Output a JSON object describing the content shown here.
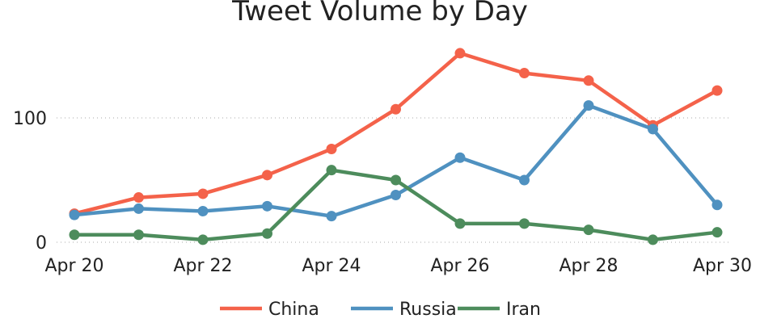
{
  "chart_data": {
    "type": "line",
    "title": "Tweet Volume by Day",
    "x": [
      "Apr 20",
      "Apr 21",
      "Apr 22",
      "Apr 23",
      "Apr 24",
      "Apr 25",
      "Apr 26",
      "Apr 27",
      "Apr 28",
      "Apr 29",
      "Apr 30"
    ],
    "x_tick_labels": [
      "Apr 20",
      "Apr 22",
      "Apr 24",
      "Apr 26",
      "Apr 28",
      "Apr 30"
    ],
    "y_tick_labels": [
      "0",
      "100"
    ],
    "y_ticks": [
      0,
      100
    ],
    "ylim": [
      0,
      155
    ],
    "grid": "horizontal dotted",
    "legend_position": "bottom",
    "series": [
      {
        "name": "China",
        "color": "#f4624a",
        "values": [
          23,
          36,
          39,
          54,
          75,
          107,
          152,
          136,
          130,
          94,
          122
        ]
      },
      {
        "name": "Russia",
        "color": "#4f91c0",
        "values": [
          22,
          27,
          25,
          29,
          21,
          38,
          68,
          50,
          110,
          91,
          30
        ]
      },
      {
        "name": "Iran",
        "color": "#4d8c5c",
        "values": [
          6,
          6,
          2,
          7,
          58,
          50,
          15,
          15,
          10,
          2,
          8
        ]
      }
    ]
  }
}
